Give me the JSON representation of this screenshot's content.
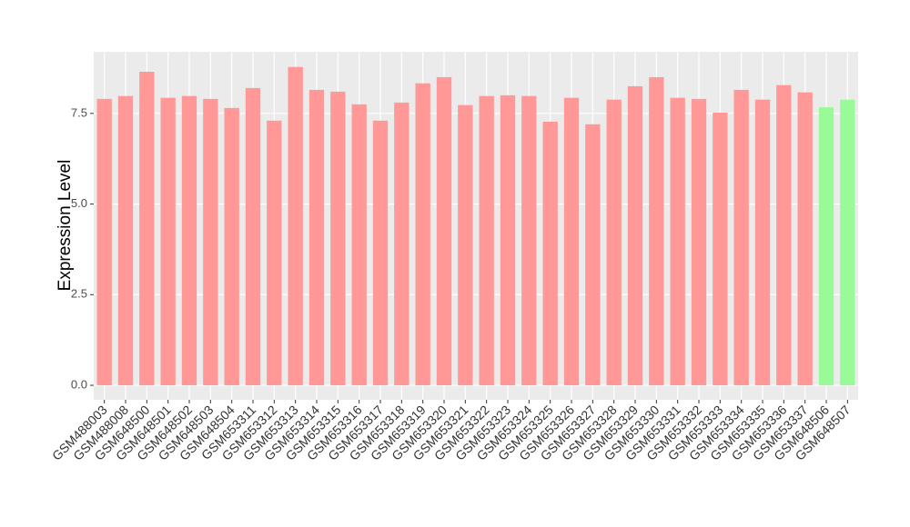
{
  "chart_data": {
    "type": "bar",
    "y_label": "Expression Level",
    "categories": [
      "GSM488003",
      "GSM488008",
      "GSM648500",
      "GSM648501",
      "GSM648502",
      "GSM648503",
      "GSM648504",
      "GSM653311",
      "GSM653312",
      "GSM653313",
      "GSM653314",
      "GSM653315",
      "GSM653316",
      "GSM653317",
      "GSM653318",
      "GSM653319",
      "GSM653320",
      "GSM653321",
      "GSM653322",
      "GSM653323",
      "GSM653324",
      "GSM653325",
      "GSM653326",
      "GSM653327",
      "GSM653328",
      "GSM653329",
      "GSM653330",
      "GSM653331",
      "GSM653332",
      "GSM653333",
      "GSM653334",
      "GSM653335",
      "GSM653336",
      "GSM653337",
      "GSM648506",
      "GSM648507"
    ],
    "values": [
      7.9,
      7.98,
      8.65,
      7.93,
      7.98,
      7.9,
      7.65,
      8.2,
      7.3,
      8.78,
      8.15,
      8.1,
      7.75,
      7.3,
      7.8,
      8.33,
      8.5,
      7.73,
      7.98,
      8.0,
      7.98,
      7.27,
      7.93,
      7.2,
      7.88,
      8.25,
      8.5,
      7.93,
      7.9,
      7.52,
      8.15,
      7.88,
      8.28,
      8.08,
      7.67,
      7.88
    ],
    "colors": [
      "#ff9896",
      "#ff9896",
      "#ff9896",
      "#ff9896",
      "#ff9896",
      "#ff9896",
      "#ff9896",
      "#ff9896",
      "#ff9896",
      "#ff9896",
      "#ff9896",
      "#ff9896",
      "#ff9896",
      "#ff9896",
      "#ff9896",
      "#ff9896",
      "#ff9896",
      "#ff9896",
      "#ff9896",
      "#ff9896",
      "#ff9896",
      "#ff9896",
      "#ff9896",
      "#ff9896",
      "#ff9896",
      "#ff9896",
      "#ff9896",
      "#ff9896",
      "#ff9896",
      "#ff9896",
      "#ff9896",
      "#ff9896",
      "#ff9896",
      "#ff9896",
      "#98fb98",
      "#98fb98"
    ],
    "ylim": [
      -0.4,
      9.2
    ],
    "yticks": [
      {
        "value": 0,
        "label": "0.0"
      },
      {
        "value": 2.5,
        "label": "2.5"
      },
      {
        "value": 5,
        "label": "5.0"
      },
      {
        "value": 7.5,
        "label": "7.5"
      }
    ],
    "grid": true
  }
}
